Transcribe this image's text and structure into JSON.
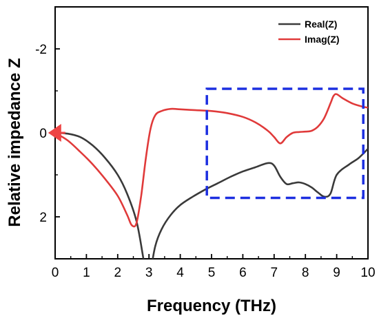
{
  "chart_data": {
    "type": "line",
    "xlabel": "Frequency (THz)",
    "ylabel": "Relative impedance Z",
    "xlim": [
      0,
      10
    ],
    "ylim": [
      3,
      -3
    ],
    "y_axis_inverted": true,
    "xticks": [
      0,
      1,
      2,
      3,
      4,
      5,
      6,
      7,
      8,
      9,
      10
    ],
    "yticks": [
      -2,
      0,
      2
    ],
    "legend_position": "top-right",
    "series": [
      {
        "name": "Real(Z)",
        "color": "#3a3a3a",
        "x": [
          0.0,
          0.4,
          0.8,
          1.2,
          1.6,
          2.0,
          2.3,
          2.6,
          2.8,
          2.95,
          3.05,
          3.2,
          3.4,
          3.7,
          4.0,
          4.4,
          4.8,
          5.2,
          5.6,
          6.0,
          6.4,
          6.8,
          7.0,
          7.2,
          7.4,
          7.6,
          7.8,
          8.0,
          8.2,
          8.4,
          8.6,
          8.8,
          9.0,
          9.4,
          9.7,
          10.0
        ],
        "values": [
          0.0,
          0.02,
          0.1,
          0.3,
          0.6,
          1.0,
          1.45,
          2.1,
          2.9,
          3.6,
          3.3,
          2.7,
          2.3,
          1.95,
          1.72,
          1.52,
          1.35,
          1.2,
          1.05,
          0.92,
          0.82,
          0.72,
          0.78,
          1.05,
          1.22,
          1.2,
          1.18,
          1.22,
          1.3,
          1.42,
          1.52,
          1.45,
          1.0,
          0.75,
          0.6,
          0.38
        ]
      },
      {
        "name": "Imag(Z)",
        "color": "#e03a3a",
        "x": [
          0.0,
          0.4,
          0.8,
          1.2,
          1.6,
          2.0,
          2.3,
          2.45,
          2.6,
          2.75,
          2.9,
          3.05,
          3.2,
          3.4,
          3.7,
          4.0,
          4.5,
          5.0,
          5.5,
          6.0,
          6.4,
          6.8,
          7.0,
          7.2,
          7.4,
          7.6,
          7.8,
          8.0,
          8.2,
          8.4,
          8.6,
          8.8,
          8.9,
          9.0,
          9.2,
          9.5,
          9.8,
          10.0
        ],
        "values": [
          0.0,
          0.18,
          0.45,
          0.75,
          1.1,
          1.5,
          1.95,
          2.2,
          2.15,
          1.5,
          0.6,
          -0.1,
          -0.42,
          -0.52,
          -0.57,
          -0.56,
          -0.54,
          -0.52,
          -0.47,
          -0.38,
          -0.25,
          -0.05,
          0.1,
          0.25,
          0.1,
          0.0,
          -0.02,
          -0.03,
          -0.05,
          -0.15,
          -0.35,
          -0.7,
          -0.88,
          -0.92,
          -0.82,
          -0.7,
          -0.63,
          -0.6
        ]
      }
    ],
    "annotations": [
      {
        "type": "arrow",
        "color": "#ee4444",
        "at_x": 0.15,
        "at_y": 0.0,
        "direction": "left"
      },
      {
        "type": "dashed-box",
        "color": "#1c2fe0",
        "x_range": [
          4.85,
          9.85
        ],
        "y_range": [
          -1.05,
          1.55
        ]
      }
    ]
  }
}
